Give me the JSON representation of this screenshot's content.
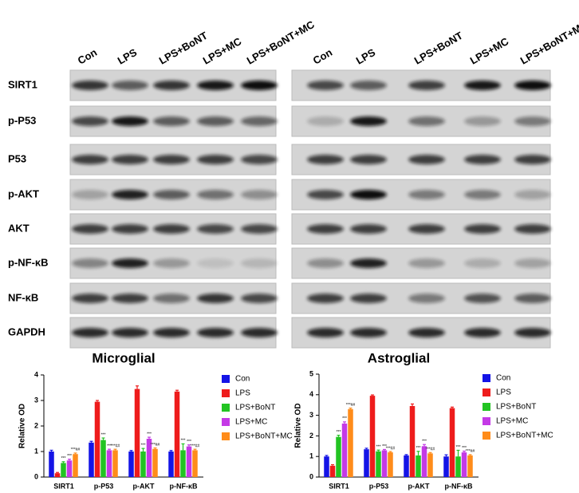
{
  "blots": {
    "lanes": [
      "Con",
      "LPS",
      "LPS+BoNT",
      "LPS+MC",
      "LPS+BoNT+MC"
    ],
    "rows": [
      "SIRT1",
      "p-P53",
      "P53",
      "p-AKT",
      "AKT",
      "p-NF-κB",
      "NF-κB",
      "GAPDH"
    ]
  },
  "chart_data": [
    {
      "type": "bar",
      "title": "Microglial",
      "y_label": "Relative OD",
      "categories": [
        "SIRT1",
        "p-P53",
        "p-AKT",
        "p-NF-κB"
      ],
      "ylim": [
        0,
        4
      ],
      "yticks": [
        0,
        1,
        2,
        3,
        4
      ],
      "series": [
        {
          "name": "Con",
          "color": "#1414e6",
          "values": [
            1.0,
            1.35,
            1.0,
            1.0
          ],
          "errors": [
            0.05,
            0.05,
            0.04,
            0.04
          ],
          "annotations": [
            null,
            null,
            null,
            null
          ]
        },
        {
          "name": "LPS",
          "color": "#ee1c1c",
          "values": [
            0.15,
            2.95,
            3.45,
            3.35
          ],
          "errors": [
            0.03,
            0.05,
            0.12,
            0.05
          ],
          "annotations": [
            null,
            null,
            null,
            null
          ]
        },
        {
          "name": "LPS+BoNT",
          "color": "#22c422",
          "values": [
            0.55,
            1.45,
            1.0,
            1.05
          ],
          "errors": [
            0.05,
            0.08,
            0.12,
            0.25
          ],
          "annotations": [
            "***",
            "***",
            "***",
            "***"
          ]
        },
        {
          "name": "LPS+MC",
          "color": "#c43ae6",
          "values": [
            0.65,
            1.05,
            1.5,
            1.2
          ],
          "errors": [
            0.05,
            0.04,
            0.06,
            0.06
          ],
          "annotations": [
            "***",
            "***",
            "***",
            "***"
          ]
        },
        {
          "name": "LPS+BoNT+MC",
          "color": "#ff8c1a",
          "values": [
            0.9,
            1.05,
            1.1,
            1.05
          ],
          "errors": [
            0.04,
            0.04,
            0.04,
            0.04
          ],
          "annotations": [
            "***##",
            "***##",
            "***##",
            "***##"
          ]
        }
      ]
    },
    {
      "type": "bar",
      "title": "Astroglial",
      "y_label": "Relative OD",
      "categories": [
        "SIRT1",
        "p-P53",
        "p-AKT",
        "p-NF-κB"
      ],
      "ylim": [
        0,
        5
      ],
      "yticks": [
        0,
        1,
        2,
        3,
        4,
        5
      ],
      "series": [
        {
          "name": "Con",
          "color": "#1414e6",
          "values": [
            1.0,
            1.35,
            1.05,
            1.0
          ],
          "errors": [
            0.05,
            0.05,
            0.04,
            0.08
          ],
          "annotations": [
            null,
            null,
            null,
            null
          ]
        },
        {
          "name": "LPS",
          "color": "#ee1c1c",
          "values": [
            0.55,
            3.95,
            3.45,
            3.35
          ],
          "errors": [
            0.05,
            0.04,
            0.1,
            0.05
          ],
          "annotations": [
            null,
            null,
            null,
            null
          ]
        },
        {
          "name": "LPS+BoNT",
          "color": "#22c422",
          "values": [
            1.95,
            1.25,
            1.05,
            1.0
          ],
          "errors": [
            0.08,
            0.06,
            0.2,
            0.3
          ],
          "annotations": [
            "***",
            "***",
            "***",
            "***"
          ]
        },
        {
          "name": "LPS+MC",
          "color": "#c43ae6",
          "values": [
            2.6,
            1.3,
            1.5,
            1.2
          ],
          "errors": [
            0.08,
            0.04,
            0.08,
            0.06
          ],
          "annotations": [
            "***",
            "***",
            "***",
            "***"
          ]
        },
        {
          "name": "LPS+BoNT+MC",
          "color": "#ff8c1a",
          "values": [
            3.3,
            1.2,
            1.15,
            1.05
          ],
          "errors": [
            0.05,
            0.04,
            0.04,
            0.04
          ],
          "annotations": [
            "***##",
            "***##",
            "***##",
            "***##"
          ]
        }
      ]
    }
  ]
}
